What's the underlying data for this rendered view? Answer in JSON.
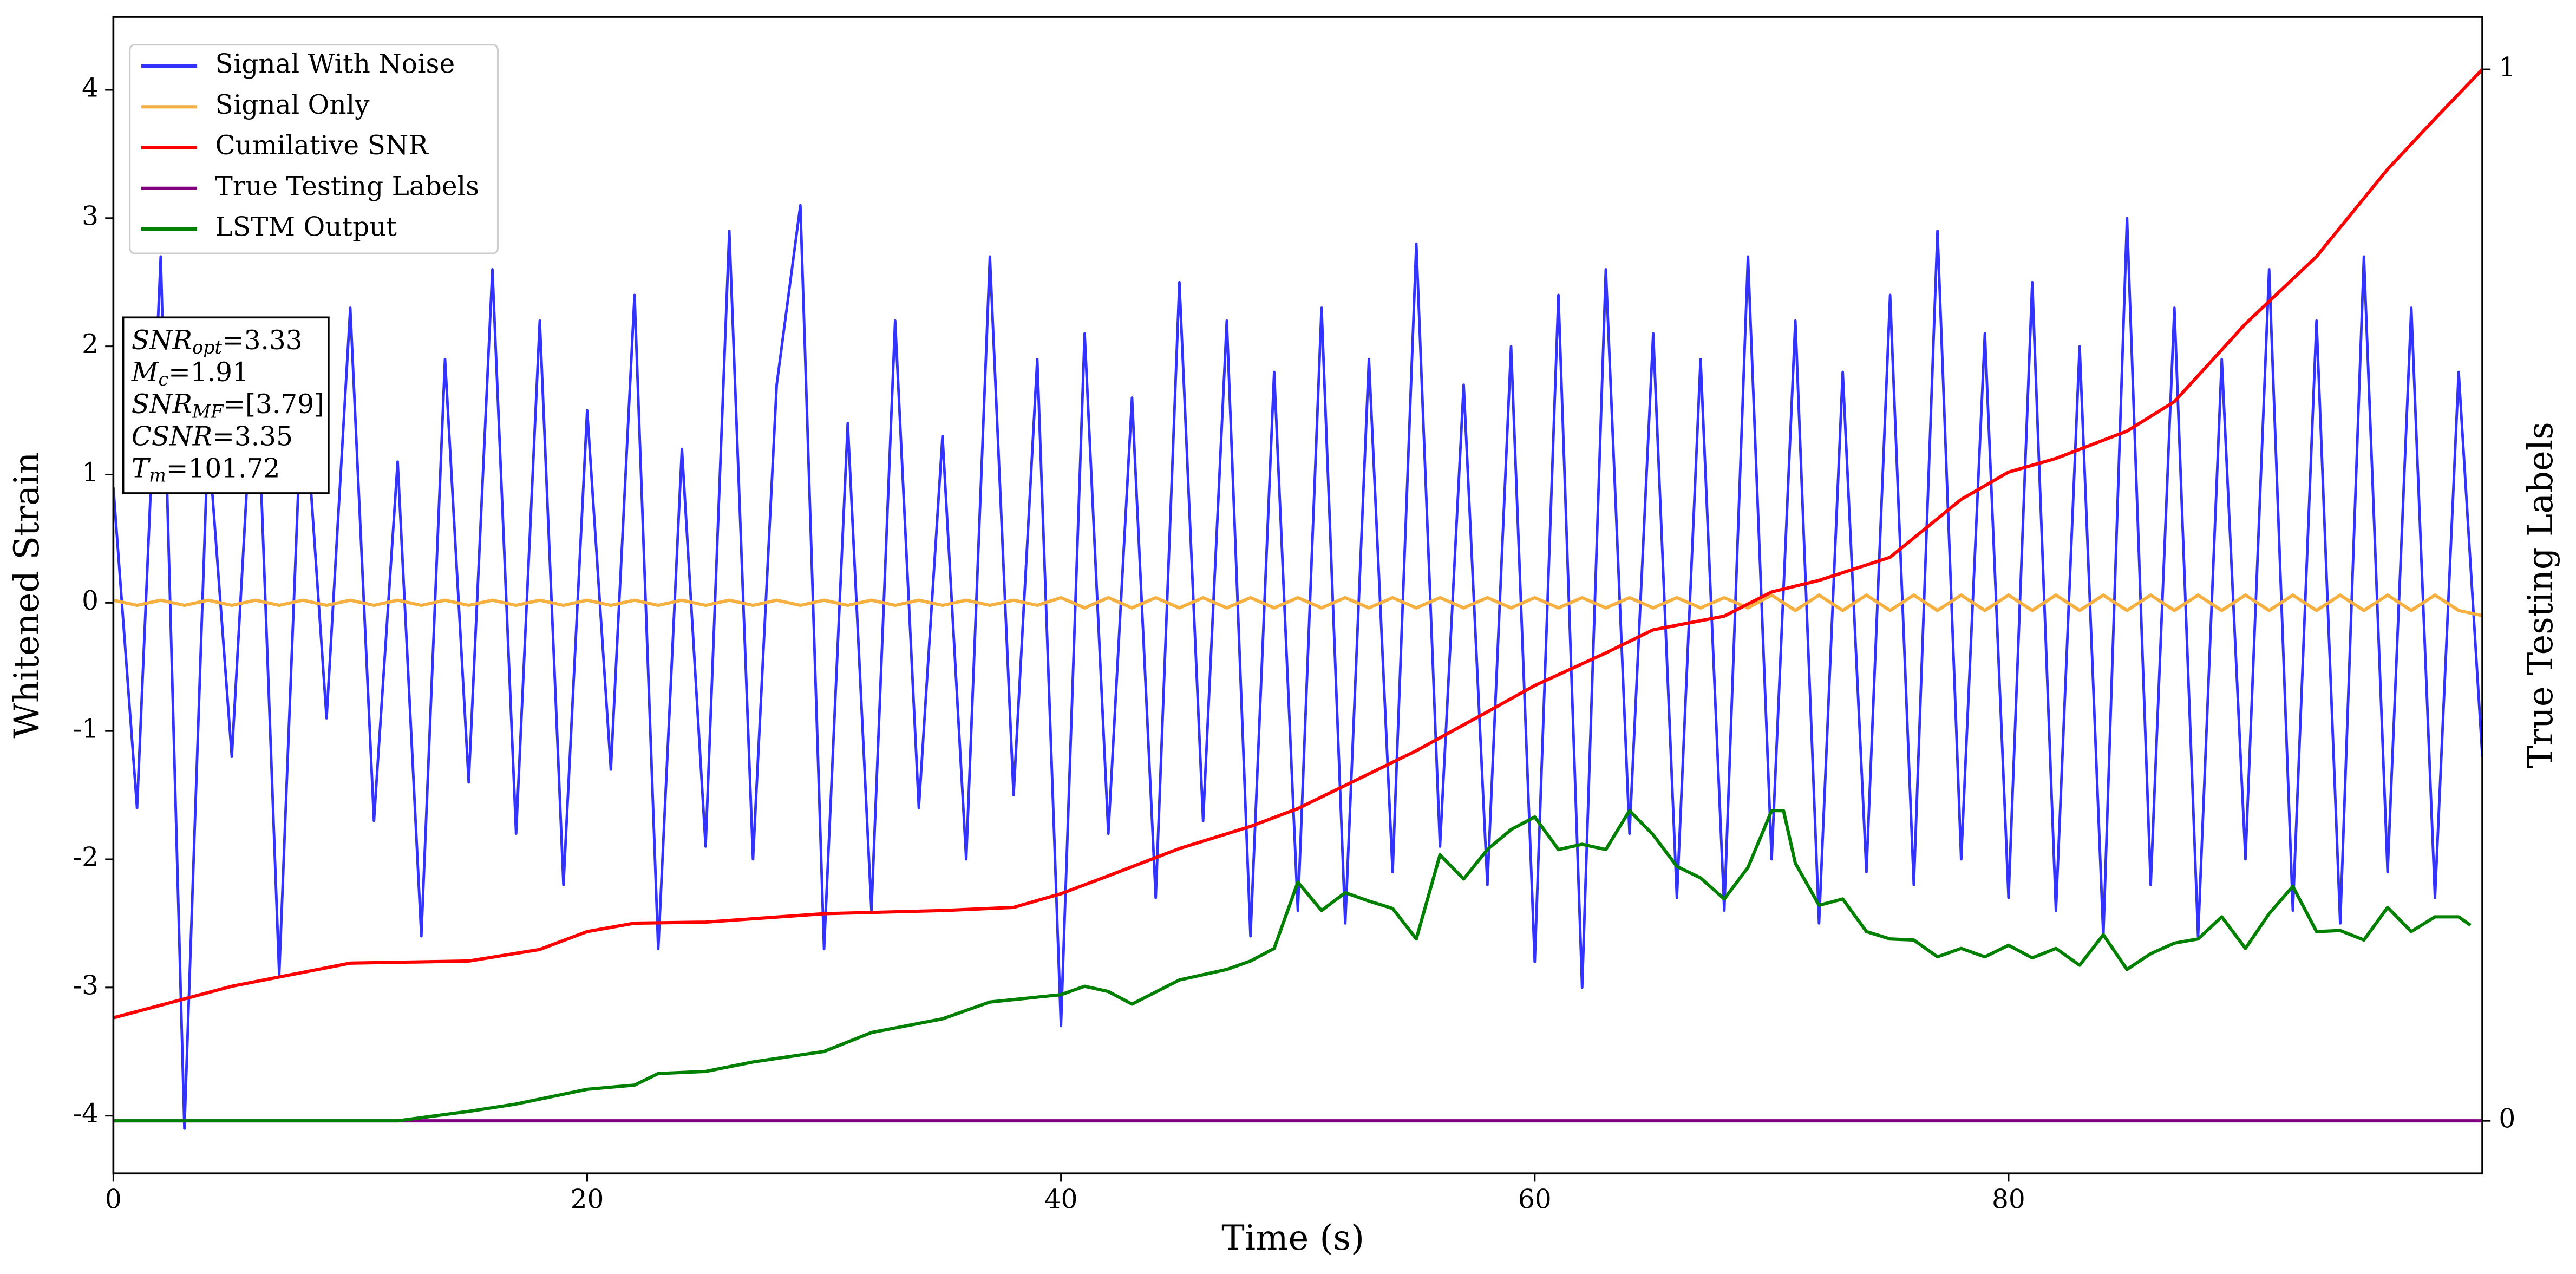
{
  "chart_data": {
    "type": "line",
    "xlabel": "Time (s)",
    "ylabel": "Whitened Strain",
    "y2label": "True Testing Labels",
    "xlim": [
      0,
      100
    ],
    "xticks": [
      0,
      20,
      40,
      60,
      80
    ],
    "ylim": [
      -4.45,
      4.57
    ],
    "yticks": [
      -4,
      -3,
      -2,
      -1,
      0,
      1,
      2,
      3,
      4
    ],
    "y2lim": [
      -0.05,
      1.05
    ],
    "y2ticks": [
      0,
      1
    ],
    "legend": "upper left",
    "annotation": [
      [
        "SNR",
        "opt",
        "=3.33"
      ],
      [
        "M",
        "c",
        "=1.91"
      ],
      [
        "SNR",
        "MF",
        "=[3.79]"
      ],
      [
        "CSNR",
        null,
        "=3.35"
      ],
      [
        "T",
        "m",
        "=101.72"
      ]
    ],
    "x": [
      0,
      1,
      2,
      3,
      4,
      5,
      6,
      7,
      8,
      9,
      10,
      11,
      12,
      13,
      14,
      15,
      16,
      17,
      18,
      19,
      20,
      21,
      22,
      23,
      24,
      25,
      26,
      27,
      28,
      29,
      30,
      31,
      32,
      33,
      34,
      35,
      36,
      37,
      38,
      39,
      40,
      41,
      42,
      43,
      44,
      45,
      46,
      47,
      48,
      49,
      50,
      51,
      52,
      53,
      54,
      55,
      56,
      57,
      58,
      59,
      60,
      61,
      62,
      63,
      64,
      65,
      66,
      67,
      68,
      69,
      70,
      71,
      72,
      73,
      74,
      75,
      76,
      77,
      78,
      79,
      80,
      81,
      82,
      83,
      84,
      85,
      86,
      87,
      88,
      89,
      90,
      91,
      92,
      93,
      94,
      95,
      96,
      97,
      98,
      99,
      100
    ],
    "series": [
      {
        "name": "Signal With Noise",
        "color": "#3333ff",
        "values": [
          0.9,
          -1.6,
          2.7,
          -4.1,
          1.3,
          -1.2,
          2.1,
          -2.9,
          1.8,
          -0.9,
          2.3,
          -1.7,
          1.1,
          -2.6,
          1.9,
          -1.4,
          2.6,
          -1.8,
          2.2,
          -2.2,
          1.5,
          -1.3,
          2.4,
          -2.7,
          1.2,
          -1.9,
          2.9,
          -2.0,
          1.7,
          3.1,
          -2.7,
          1.4,
          -2.4,
          2.2,
          -1.6,
          1.3,
          -2.0,
          2.7,
          -1.5,
          1.9,
          -3.3,
          2.1,
          -1.8,
          1.6,
          -2.3,
          2.5,
          -1.7,
          2.2,
          -2.6,
          1.8,
          -2.4,
          2.3,
          -2.5,
          1.9,
          -2.1,
          2.8,
          -1.9,
          1.7,
          -2.2,
          2.0,
          -2.8,
          2.4,
          -3.0,
          2.6,
          -1.8,
          2.1,
          -2.3,
          1.9,
          -2.4,
          2.7,
          -2.0,
          2.2,
          -2.5,
          1.8,
          -2.1,
          2.4,
          -2.2,
          2.9,
          -2.0,
          2.1,
          -2.3,
          2.5,
          -2.4,
          2.0,
          -2.6,
          3.0,
          -2.2,
          2.3,
          -2.6,
          1.9,
          -2.0,
          2.6,
          -2.4,
          2.2,
          -2.5,
          2.7,
          -2.1,
          2.3,
          -2.3,
          1.8,
          -1.2
        ]
      },
      {
        "name": "Signal Only",
        "color": "#f5b041",
        "values": [
          0.02,
          -0.02,
          0.02,
          -0.02,
          0.02,
          -0.02,
          0.02,
          -0.02,
          0.02,
          -0.02,
          0.02,
          -0.02,
          0.02,
          -0.02,
          0.02,
          -0.02,
          0.02,
          -0.02,
          0.02,
          -0.02,
          0.02,
          -0.02,
          0.02,
          -0.02,
          0.02,
          -0.02,
          0.02,
          -0.02,
          0.02,
          -0.02,
          0.02,
          -0.02,
          0.02,
          -0.02,
          0.02,
          -0.02,
          0.02,
          -0.02,
          0.02,
          -0.02,
          0.04,
          -0.04,
          0.04,
          -0.04,
          0.04,
          -0.04,
          0.04,
          -0.04,
          0.04,
          -0.04,
          0.04,
          -0.04,
          0.04,
          -0.04,
          0.04,
          -0.04,
          0.04,
          -0.04,
          0.04,
          -0.04,
          0.04,
          -0.04,
          0.04,
          -0.04,
          0.04,
          -0.04,
          0.04,
          -0.04,
          0.04,
          -0.04,
          0.06,
          -0.06,
          0.06,
          -0.06,
          0.06,
          -0.06,
          0.06,
          -0.06,
          0.06,
          -0.06,
          0.06,
          -0.06,
          0.06,
          -0.06,
          0.06,
          -0.06,
          0.06,
          -0.06,
          0.06,
          -0.06,
          0.06,
          -0.06,
          0.06,
          -0.06,
          0.06,
          -0.06,
          0.06,
          -0.06,
          0.06,
          -0.06,
          -0.1
        ]
      },
      {
        "name": "Cumilative SNR",
        "color": "#ff0000",
        "axis": "y2",
        "x": [
          0,
          5,
          10,
          15,
          18,
          20,
          22,
          25,
          30,
          35,
          38,
          40,
          42,
          45,
          48,
          50,
          55,
          58,
          60,
          63,
          65,
          68,
          70,
          72,
          75,
          78,
          80,
          82,
          85,
          87,
          90,
          93,
          96,
          98,
          100
        ],
        "values": [
          0.098,
          0.128,
          0.15,
          0.152,
          0.163,
          0.18,
          0.188,
          0.189,
          0.197,
          0.2,
          0.203,
          0.216,
          0.233,
          0.259,
          0.28,
          0.297,
          0.352,
          0.389,
          0.414,
          0.445,
          0.467,
          0.48,
          0.503,
          0.514,
          0.536,
          0.591,
          0.617,
          0.63,
          0.656,
          0.684,
          0.758,
          0.822,
          0.905,
          0.953,
          1.0
        ]
      },
      {
        "name": "True Testing Labels",
        "color": "#800080",
        "axis": "y2",
        "x": [
          0,
          100
        ],
        "values": [
          0,
          0
        ]
      },
      {
        "name": "LSTM Output",
        "color": "#008000",
        "axis": "y2",
        "x": [
          0,
          12,
          15,
          17,
          20,
          22,
          23,
          25,
          27,
          30,
          32,
          35,
          37,
          40,
          41,
          42,
          43,
          45,
          47,
          48,
          49,
          50,
          51,
          52,
          53,
          54,
          55,
          56,
          57,
          58,
          59,
          60,
          61,
          62,
          63,
          64,
          65,
          66,
          67,
          68,
          69,
          70,
          70.5,
          71,
          72,
          73,
          74,
          75,
          76,
          77,
          78,
          79,
          80,
          81,
          82,
          83,
          84,
          85,
          86,
          87,
          88,
          89,
          90,
          91,
          92,
          93,
          94,
          95,
          96,
          97,
          98,
          99,
          99.5
        ],
        "values": [
          0,
          0,
          0.009,
          0.016,
          0.03,
          0.034,
          0.045,
          0.047,
          0.056,
          0.066,
          0.084,
          0.097,
          0.113,
          0.12,
          0.128,
          0.123,
          0.111,
          0.134,
          0.144,
          0.152,
          0.164,
          0.227,
          0.2,
          0.217,
          0.209,
          0.202,
          0.173,
          0.253,
          0.23,
          0.258,
          0.277,
          0.289,
          0.258,
          0.263,
          0.258,
          0.295,
          0.272,
          0.242,
          0.231,
          0.211,
          0.241,
          0.295,
          0.295,
          0.245,
          0.205,
          0.211,
          0.18,
          0.173,
          0.172,
          0.156,
          0.164,
          0.156,
          0.167,
          0.155,
          0.164,
          0.148,
          0.177,
          0.144,
          0.159,
          0.169,
          0.173,
          0.194,
          0.164,
          0.197,
          0.223,
          0.18,
          0.181,
          0.172,
          0.203,
          0.18,
          0.194,
          0.194,
          0.186
        ]
      }
    ]
  }
}
